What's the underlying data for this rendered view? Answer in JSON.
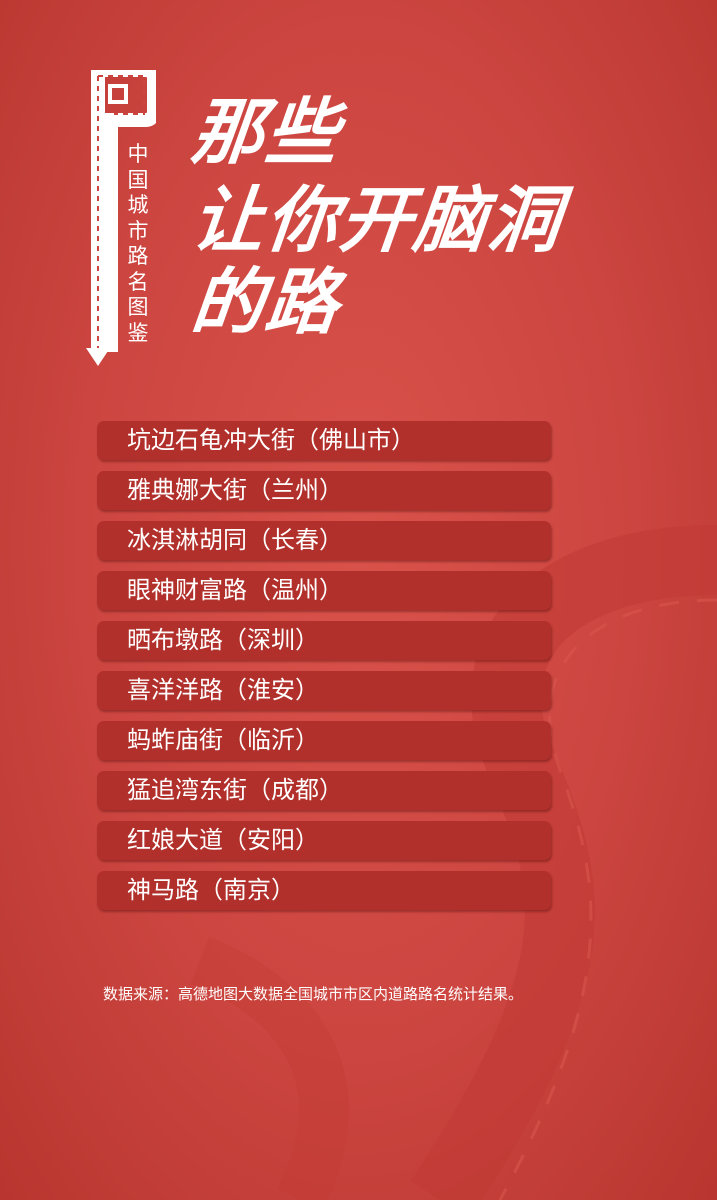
{
  "sidebar": {
    "label": "中国城市路名图鉴"
  },
  "title": {
    "line1": "那些",
    "line2": "让你开脑洞",
    "line3": "的路"
  },
  "roads": [
    "坑边石龟冲大街（佛山市）",
    "雅典娜大街（兰州）",
    "冰淇淋胡同（长春）",
    "眼神财富路（温州）",
    "晒布墩路（深圳）",
    "喜洋洋路（淮安）",
    "蚂蚱庙街（临沂）",
    "猛追湾东街（成都）",
    "红娘大道（安阳）",
    "神马路（南京）"
  ],
  "footer": {
    "source": "数据来源：高德地图大数据全国城市市区内道路路名统计结果。"
  },
  "colors": {
    "background": "#cc4540",
    "bar": "#b2302b",
    "text": "#ffffff"
  }
}
